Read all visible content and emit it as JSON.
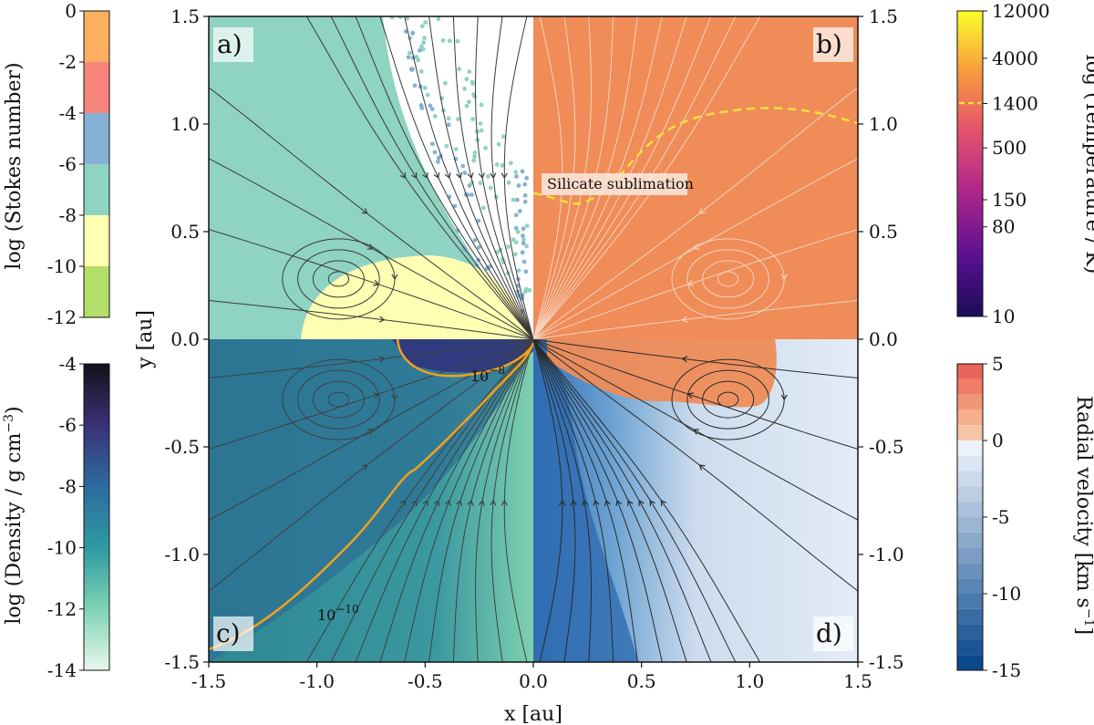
{
  "chart_data": {
    "type": "heatmap",
    "xlabel": "x [au]",
    "ylabel": "y [au]",
    "xlim": [
      -1.5,
      1.5
    ],
    "ylim": [
      -1.5,
      1.5
    ],
    "x_ticks": [
      "-1.5",
      "-1.0",
      "-0.5",
      "0.0",
      "0.5",
      "1.0",
      "1.5"
    ],
    "y_ticks": [
      "-1.5",
      "-1.0",
      "-0.5",
      "0.0",
      "0.5",
      "1.0",
      "1.5"
    ],
    "panels": [
      {
        "label": "a)",
        "quadrant": "top-left",
        "quantity": "Stokes number"
      },
      {
        "label": "b)",
        "quadrant": "top-right",
        "quantity": "Temperature"
      },
      {
        "label": "c)",
        "quadrant": "bottom-left",
        "quantity": "Density"
      },
      {
        "label": "d)",
        "quadrant": "bottom-right",
        "quantity": "Radial velocity"
      }
    ],
    "annotations": {
      "silicate": "Silicate sublimation",
      "contour_high": "10",
      "contour_high_exp": "−8",
      "contour_low": "10",
      "contour_low_exp": "−10"
    },
    "colorbars": {
      "stokes": {
        "label": "log (Stokes number)",
        "ticks": [
          "0",
          "-2",
          "-4",
          "-6",
          "-8",
          "-10",
          "-12"
        ],
        "bands": [
          "#fcae61",
          "#f7847a",
          "#86b1d6",
          "#8fd3c3",
          "#ffffb3",
          "#b3de69"
        ]
      },
      "temperature": {
        "label": "log (Temperature / K)",
        "ticks": [
          "12000",
          "4000",
          "1400",
          "500",
          "150",
          "80",
          "10"
        ],
        "marker_value": "1400"
      },
      "density": {
        "label": "log (Density / g cm",
        "label_exp": "−3",
        "label_end": ")",
        "ticks": [
          "-4",
          "-6",
          "-8",
          "-10",
          "-12",
          "-14"
        ]
      },
      "velocity": {
        "label": "Radial velocity [km s",
        "label_exp": "−1",
        "label_end": "]",
        "ticks": [
          "5",
          "0",
          "-5",
          "-10",
          "-15"
        ]
      }
    },
    "colors": {
      "panel_a_bg": "#8fd3c3",
      "panel_a_disk": "#ffffb3",
      "panel_b_bg": "#ef8c58",
      "panel_c_bg": "#2f8a9a",
      "panel_d_bg": "#dfe8f3",
      "contour": "#f2a21c",
      "silicate_line": "#f5e03a"
    }
  }
}
